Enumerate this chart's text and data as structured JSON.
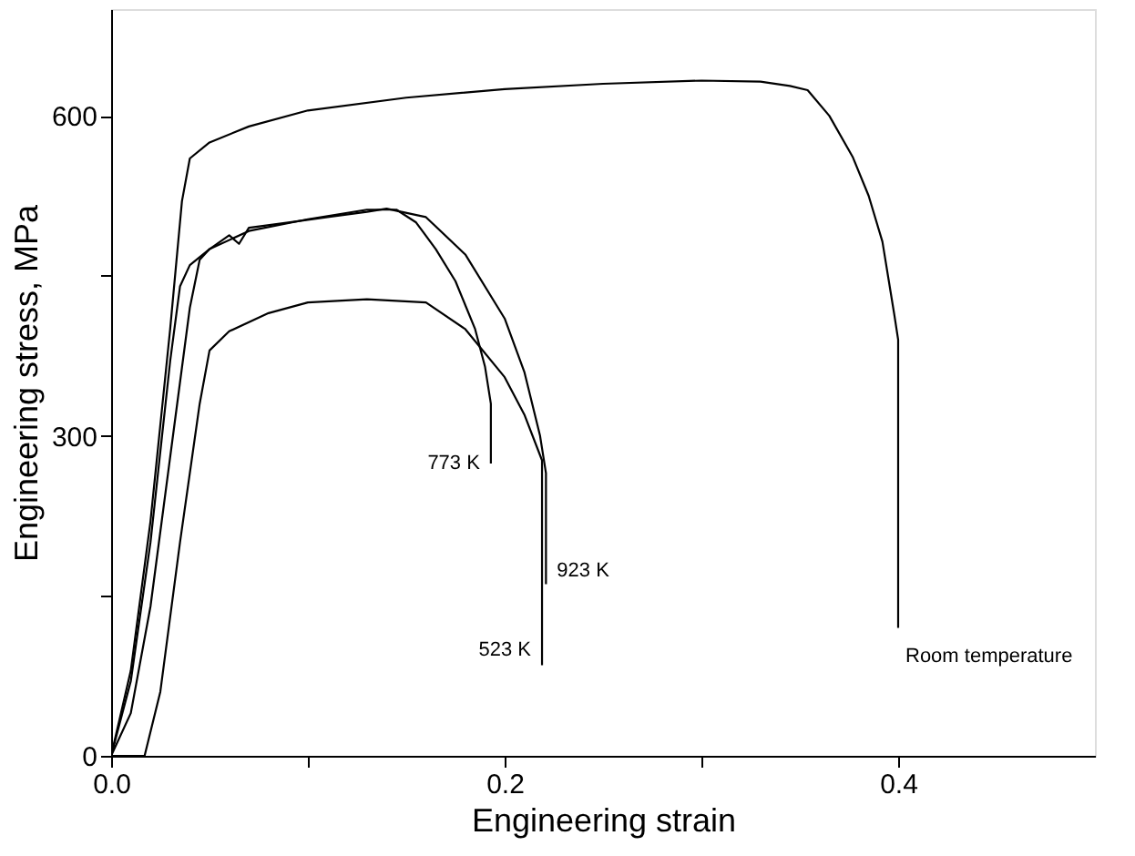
{
  "chart_data": {
    "type": "line",
    "xlabel": "Engineering strain",
    "ylabel": "Engineering stress, MPa",
    "xlim": [
      0,
      0.5
    ],
    "ylim": [
      0,
      700
    ],
    "xticks": [
      {
        "value": 0,
        "label": "0.0"
      },
      {
        "value": 0.1,
        "label": null
      },
      {
        "value": 0.2,
        "label": "0.2"
      },
      {
        "value": 0.3,
        "label": null
      },
      {
        "value": 0.4,
        "label": "0.4"
      }
    ],
    "yticks": [
      0,
      {
        "value": 150,
        "label": null
      },
      300,
      {
        "value": 450,
        "label": null
      },
      600
    ],
    "grid": false,
    "legend": false,
    "marker": "none",
    "line_style": "solid",
    "series": [
      {
        "name": "Room temperature",
        "color": "#000000",
        "x": [
          0,
          0.01,
          0.02,
          0.03,
          0.036,
          0.04,
          0.05,
          0.07,
          0.1,
          0.15,
          0.2,
          0.25,
          0.3,
          0.33,
          0.345,
          0.354,
          0.365,
          0.377,
          0.385,
          0.392,
          0.398,
          0.4,
          0.4
        ],
        "values": [
          0,
          80,
          220,
          400,
          520,
          560,
          575,
          590,
          605,
          617,
          625,
          630,
          633,
          632,
          628,
          624,
          600,
          561,
          525,
          482,
          414,
          390,
          120
        ]
      },
      {
        "name": "773 K",
        "color": "#000000",
        "x": [
          0,
          0.01,
          0.02,
          0.03,
          0.035,
          0.04,
          0.05,
          0.07,
          0.1,
          0.13,
          0.145,
          0.155,
          0.165,
          0.175,
          0.185,
          0.19,
          0.193,
          0.193
        ],
        "values": [
          0,
          70,
          200,
          370,
          440,
          460,
          475,
          492,
          503,
          512,
          512,
          500,
          475,
          445,
          400,
          365,
          330,
          274
        ]
      },
      {
        "name": "923 K",
        "color": "#000000",
        "x": [
          0,
          0.01,
          0.02,
          0.03,
          0.04,
          0.045,
          0.05,
          0.06,
          0.065,
          0.07,
          0.09,
          0.11,
          0.13,
          0.14,
          0.16,
          0.18,
          0.2,
          0.21,
          0.218,
          0.221,
          0.221
        ],
        "values": [
          0,
          40,
          140,
          280,
          420,
          465,
          475,
          488,
          480,
          495,
          500,
          505,
          510,
          513,
          505,
          470,
          410,
          360,
          300,
          265,
          161
        ]
      },
      {
        "name": "523 K",
        "color": "#000000",
        "x": [
          0,
          0.017,
          0.025,
          0.035,
          0.045,
          0.05,
          0.06,
          0.08,
          0.1,
          0.13,
          0.16,
          0.18,
          0.2,
          0.21,
          0.219,
          0.219
        ],
        "values": [
          0,
          0,
          60,
          200,
          330,
          380,
          398,
          415,
          425,
          428,
          425,
          400,
          355,
          320,
          277,
          85
        ]
      }
    ]
  }
}
